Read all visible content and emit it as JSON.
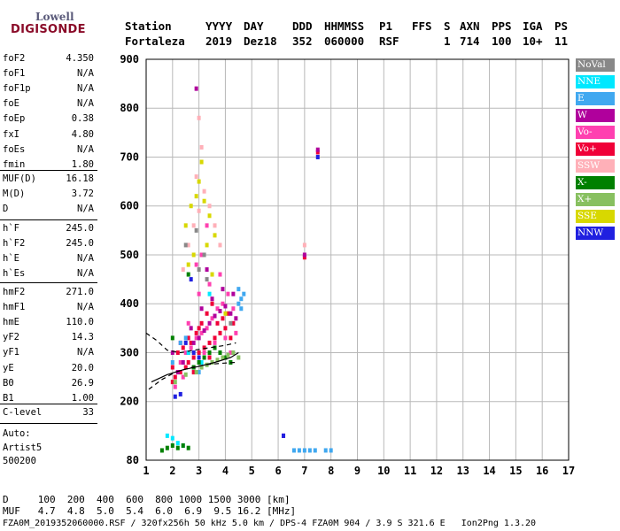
{
  "logo": {
    "line1": "Lowell",
    "line2": "DIGISONDE"
  },
  "header": {
    "labels": [
      "Station",
      "YYYY",
      "DAY",
      "DDD",
      "HHMMSS",
      "P1",
      "FFS",
      "S",
      "AXN",
      "PPS",
      "IGA",
      "PS"
    ],
    "values": [
      "Fortaleza",
      "2019",
      "Dez18",
      "352",
      "060000",
      "RSF",
      "1",
      "714",
      "100",
      "10+",
      "11"
    ]
  },
  "params": {
    "group1": [
      {
        "name": "foF2",
        "value": "4.350"
      },
      {
        "name": "foF1",
        "value": "N/A"
      },
      {
        "name": "foF1p",
        "value": "N/A"
      },
      {
        "name": "foE",
        "value": "N/A"
      },
      {
        "name": "foEp",
        "value": "0.38"
      },
      {
        "name": "fxI",
        "value": "4.80"
      },
      {
        "name": "foEs",
        "value": "N/A"
      },
      {
        "name": "fmin",
        "value": "1.80"
      }
    ],
    "group2": [
      {
        "name": "MUF(D)",
        "value": "16.18"
      },
      {
        "name": "M(D)",
        "value": "3.72"
      },
      {
        "name": "D",
        "value": "N/A"
      }
    ],
    "group3": [
      {
        "name": "h`F",
        "value": "245.0"
      },
      {
        "name": "h`F2",
        "value": "245.0"
      },
      {
        "name": "h`E",
        "value": "N/A"
      },
      {
        "name": "h`Es",
        "value": "N/A"
      }
    ],
    "group4": [
      {
        "name": "hmF2",
        "value": "271.0"
      },
      {
        "name": "hmF1",
        "value": "N/A"
      },
      {
        "name": "hmE",
        "value": "110.0"
      },
      {
        "name": "yF2",
        "value": "14.3"
      },
      {
        "name": "yF1",
        "value": "N/A"
      },
      {
        "name": "yE",
        "value": "20.0"
      },
      {
        "name": "B0",
        "value": "26.9"
      },
      {
        "name": "B1",
        "value": "1.00"
      }
    ],
    "group5": [
      {
        "name": "C-level",
        "value": "33"
      }
    ],
    "auto": [
      "Auto:",
      "Artist5",
      "500200"
    ]
  },
  "legend": [
    {
      "label": "NoVal",
      "color": "#888888",
      "text_color": "#ffffff"
    },
    {
      "label": "NNE",
      "color": "#00e8ff",
      "text_color": "#ffffff"
    },
    {
      "label": "E",
      "color": "#40a8f0",
      "text_color": "#ffffff"
    },
    {
      "label": "W",
      "color": "#b0009c",
      "text_color": "#ffffff"
    },
    {
      "label": "Vo-",
      "color": "#ff40b0",
      "text_color": "#ffffff"
    },
    {
      "label": "Vo+",
      "color": "#f00038",
      "text_color": "#ffffff"
    },
    {
      "label": "SSW",
      "color": "#ffb0b8",
      "text_color": "#ffffff"
    },
    {
      "label": "X-",
      "color": "#008000",
      "text_color": "#ffffff"
    },
    {
      "label": "X+",
      "color": "#88c060",
      "text_color": "#ffffff"
    },
    {
      "label": "SSE",
      "color": "#d8d800",
      "text_color": "#ffffff"
    },
    {
      "label": "NNW",
      "color": "#2020e0",
      "text_color": "#ffffff"
    }
  ],
  "bottom": {
    "line1": "D     100  200  400  600  800 1000 1500 3000 [km]",
    "line2": "MUF   4.7  4.8  5.0  5.4  6.0  6.9  9.5 16.2 [MHz]",
    "footer": "FZA0M_2019352060000.RSF / 320fx256h 50 kHz 5.0 km / DPS-4 FZA0M 904 / 3.9 S 321.6 E   Ion2Png 1.3.20"
  },
  "chart_data": {
    "type": "scatter",
    "title": "",
    "xlabel": "",
    "ylabel": "",
    "xlim": [
      1,
      17
    ],
    "ylim": [
      80,
      900
    ],
    "x_ticks": [
      1,
      2,
      3,
      4,
      5,
      6,
      7,
      8,
      9,
      10,
      11,
      12,
      13,
      14,
      15,
      16,
      17
    ],
    "y_ticks": [
      80,
      200,
      300,
      400,
      500,
      600,
      700,
      800,
      900
    ],
    "grid": true,
    "legend_position": "right",
    "series": [
      {
        "name": "Vo+",
        "color": "#f00038",
        "points": [
          [
            2.0,
            240
          ],
          [
            2.1,
            250
          ],
          [
            2.3,
            260
          ],
          [
            2.5,
            270
          ],
          [
            2.6,
            280
          ],
          [
            2.8,
            290
          ],
          [
            3.0,
            300
          ],
          [
            3.2,
            310
          ],
          [
            3.4,
            320
          ],
          [
            3.6,
            330
          ],
          [
            3.8,
            340
          ],
          [
            4.0,
            350
          ],
          [
            4.2,
            330
          ],
          [
            2.2,
            300
          ],
          [
            2.4,
            310
          ],
          [
            2.7,
            320
          ],
          [
            2.9,
            340
          ],
          [
            3.1,
            360
          ],
          [
            3.3,
            380
          ],
          [
            3.5,
            400
          ],
          [
            3.7,
            360
          ],
          [
            3.9,
            370
          ],
          [
            4.1,
            380
          ],
          [
            4.3,
            360
          ],
          [
            2.0,
            270
          ],
          [
            2.6,
            330
          ],
          [
            3.0,
            350
          ],
          [
            7.5,
            710
          ],
          [
            7.0,
            495
          ],
          [
            3.4,
            290
          ],
          [
            2.8,
            260
          ]
        ]
      },
      {
        "name": "Vo-",
        "color": "#ff40b0",
        "points": [
          [
            2.3,
            280
          ],
          [
            2.5,
            300
          ],
          [
            2.7,
            310
          ],
          [
            2.9,
            330
          ],
          [
            3.1,
            340
          ],
          [
            3.3,
            350
          ],
          [
            3.5,
            370
          ],
          [
            3.7,
            390
          ],
          [
            3.9,
            400
          ],
          [
            4.1,
            420
          ],
          [
            4.3,
            390
          ],
          [
            2.1,
            230
          ],
          [
            2.4,
            250
          ],
          [
            2.8,
            270
          ],
          [
            3.2,
            300
          ],
          [
            3.6,
            320
          ],
          [
            4.0,
            330
          ],
          [
            4.4,
            340
          ],
          [
            3.0,
            420
          ],
          [
            3.4,
            440
          ],
          [
            3.8,
            460
          ],
          [
            2.6,
            360
          ],
          [
            3.1,
            500
          ],
          [
            3.3,
            560
          ],
          [
            2.9,
            480
          ],
          [
            4.2,
            300
          ]
        ]
      },
      {
        "name": "W",
        "color": "#b0009c",
        "points": [
          [
            2.2,
            260
          ],
          [
            2.4,
            280
          ],
          [
            2.6,
            300
          ],
          [
            2.8,
            320
          ],
          [
            3.0,
            330
          ],
          [
            3.2,
            345
          ],
          [
            3.4,
            360
          ],
          [
            3.6,
            375
          ],
          [
            3.8,
            385
          ],
          [
            4.0,
            395
          ],
          [
            4.2,
            380
          ],
          [
            4.4,
            370
          ],
          [
            2.0,
            300
          ],
          [
            2.3,
            320
          ],
          [
            2.7,
            350
          ],
          [
            3.1,
            390
          ],
          [
            3.5,
            410
          ],
          [
            3.9,
            430
          ],
          [
            3.3,
            470
          ],
          [
            2.9,
            840
          ],
          [
            7.5,
            715
          ],
          [
            7.0,
            500
          ],
          [
            6.2,
            130
          ],
          [
            4.3,
            420
          ]
        ]
      },
      {
        "name": "E",
        "color": "#40a8f0",
        "points": [
          [
            4.5,
            400
          ],
          [
            4.6,
            410
          ],
          [
            4.7,
            420
          ],
          [
            4.5,
            430
          ],
          [
            4.6,
            390
          ],
          [
            2.3,
            320
          ],
          [
            2.5,
            330
          ],
          [
            6.6,
            100
          ],
          [
            6.8,
            100
          ],
          [
            7.0,
            100
          ],
          [
            7.2,
            100
          ],
          [
            7.4,
            100
          ],
          [
            7.8,
            100
          ],
          [
            8.0,
            100
          ],
          [
            2.0,
            280
          ],
          [
            3.0,
            260
          ],
          [
            3.5,
            280
          ]
        ]
      },
      {
        "name": "NNE",
        "color": "#00e8ff",
        "points": [
          [
            1.8,
            130
          ],
          [
            2.0,
            125
          ],
          [
            2.2,
            115
          ],
          [
            2.4,
            110
          ],
          [
            3.4,
            420
          ],
          [
            2.6,
            300
          ],
          [
            3.1,
            280
          ]
        ]
      },
      {
        "name": "X-",
        "color": "#008000",
        "points": [
          [
            1.6,
            100
          ],
          [
            1.8,
            105
          ],
          [
            2.0,
            110
          ],
          [
            2.2,
            105
          ],
          [
            2.4,
            110
          ],
          [
            2.6,
            105
          ],
          [
            2.8,
            270
          ],
          [
            3.0,
            280
          ],
          [
            3.2,
            290
          ],
          [
            3.4,
            300
          ],
          [
            3.6,
            310
          ],
          [
            3.8,
            300
          ],
          [
            4.0,
            290
          ],
          [
            4.2,
            280
          ],
          [
            2.6,
            460
          ],
          [
            2.0,
            330
          ]
        ]
      },
      {
        "name": "X+",
        "color": "#88c060",
        "points": [
          [
            2.9,
            260
          ],
          [
            3.1,
            270
          ],
          [
            3.3,
            275
          ],
          [
            3.5,
            280
          ],
          [
            3.7,
            285
          ],
          [
            3.9,
            290
          ],
          [
            4.1,
            295
          ],
          [
            4.3,
            300
          ],
          [
            4.5,
            290
          ],
          [
            2.1,
            240
          ],
          [
            2.5,
            255
          ]
        ]
      },
      {
        "name": "SSE",
        "color": "#d8d800",
        "points": [
          [
            2.5,
            560
          ],
          [
            2.7,
            600
          ],
          [
            2.9,
            620
          ],
          [
            3.0,
            650
          ],
          [
            3.1,
            690
          ],
          [
            3.2,
            610
          ],
          [
            3.4,
            580
          ],
          [
            3.6,
            540
          ],
          [
            2.8,
            500
          ],
          [
            3.3,
            520
          ],
          [
            2.6,
            480
          ],
          [
            4.0,
            380
          ],
          [
            3.5,
            460
          ]
        ]
      },
      {
        "name": "SSW",
        "color": "#ffb0b8",
        "points": [
          [
            2.4,
            470
          ],
          [
            2.6,
            520
          ],
          [
            2.8,
            560
          ],
          [
            3.0,
            590
          ],
          [
            3.2,
            630
          ],
          [
            3.4,
            600
          ],
          [
            3.6,
            560
          ],
          [
            3.8,
            520
          ],
          [
            3.0,
            780
          ],
          [
            7.0,
            520
          ],
          [
            3.1,
            720
          ],
          [
            2.9,
            660
          ]
        ]
      },
      {
        "name": "NNW",
        "color": "#2020e0",
        "points": [
          [
            2.1,
            210
          ],
          [
            2.3,
            215
          ],
          [
            2.5,
            320
          ],
          [
            2.8,
            300
          ],
          [
            3.0,
            290
          ],
          [
            6.2,
            130
          ],
          [
            7.5,
            700
          ],
          [
            2.7,
            450
          ]
        ]
      },
      {
        "name": "NoVal",
        "color": "#888888",
        "points": [
          [
            2.9,
            550
          ],
          [
            3.2,
            500
          ],
          [
            3.0,
            470
          ],
          [
            2.5,
            520
          ],
          [
            3.3,
            450
          ],
          [
            4.2,
            360
          ]
        ]
      }
    ],
    "fit_lines": [
      {
        "name": "solid",
        "style": "solid",
        "points": [
          [
            1.2,
            240
          ],
          [
            1.8,
            255
          ],
          [
            2.4,
            265
          ],
          [
            3.0,
            272
          ],
          [
            3.6,
            280
          ],
          [
            4.2,
            290
          ],
          [
            4.5,
            300
          ]
        ]
      },
      {
        "name": "dashed-upper",
        "style": "dashed",
        "points": [
          [
            1.0,
            340
          ],
          [
            1.4,
            325
          ],
          [
            1.8,
            305
          ],
          [
            2.3,
            300
          ],
          [
            2.8,
            305
          ],
          [
            3.4,
            310
          ],
          [
            4.0,
            315
          ],
          [
            4.4,
            320
          ]
        ]
      },
      {
        "name": "dashed-lower",
        "style": "dashed",
        "points": [
          [
            1.1,
            225
          ],
          [
            1.6,
            245
          ],
          [
            2.1,
            260
          ],
          [
            2.6,
            268
          ],
          [
            3.2,
            275
          ],
          [
            3.8,
            278
          ],
          [
            4.4,
            280
          ]
        ]
      }
    ]
  }
}
